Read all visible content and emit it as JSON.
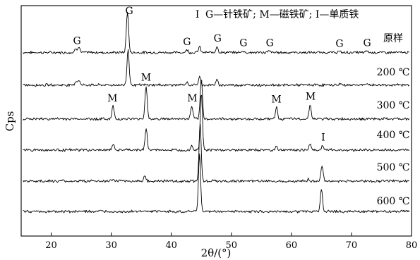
{
  "chart_data": {
    "type": "line",
    "title": "",
    "xlabel": "2θ/(°)",
    "ylabel": "Cps",
    "xlim": [
      15,
      80
    ],
    "xticks": [
      20,
      30,
      40,
      50,
      60,
      70,
      80
    ],
    "grid": false,
    "legend_text": "G—针铁矿; M—磁铁矿; I—单质铁",
    "series": [
      {
        "name": "原样",
        "baseline": 0.12,
        "peaks": [
          {
            "x": 24.1,
            "h": 0.07
          },
          {
            "x": 24.6,
            "h": 0.1
          },
          {
            "x": 32.7,
            "h": 0.72
          },
          {
            "x": 42.6,
            "h": 0.05
          },
          {
            "x": 44.7,
            "h": 0.1
          },
          {
            "x": 47.6,
            "h": 0.11
          },
          {
            "x": 51.9,
            "h": 0.03
          },
          {
            "x": 56.3,
            "h": 0.03
          },
          {
            "x": 67.9,
            "h": 0.02
          },
          {
            "x": 72.6,
            "h": 0.03
          }
        ],
        "peak_labels": [
          {
            "x": 24.3,
            "text": "G"
          },
          {
            "x": 33.0,
            "text": "G"
          },
          {
            "x": 42.6,
            "text": "G"
          },
          {
            "x": 47.7,
            "text": "G"
          },
          {
            "x": 52.0,
            "text": "G"
          },
          {
            "x": 56.4,
            "text": "G"
          },
          {
            "x": 68.0,
            "text": "G"
          },
          {
            "x": 72.6,
            "text": "G"
          }
        ]
      },
      {
        "name": "200 ℃",
        "baseline": 0.11,
        "peaks": [
          {
            "x": 24.1,
            "h": 0.06
          },
          {
            "x": 24.6,
            "h": 0.09
          },
          {
            "x": 32.8,
            "h": 0.62
          },
          {
            "x": 42.6,
            "h": 0.04
          },
          {
            "x": 44.7,
            "h": 0.14
          },
          {
            "x": 47.6,
            "h": 0.08
          },
          {
            "x": 68.1,
            "h": 0.02
          },
          {
            "x": 72.6,
            "h": 0.02
          }
        ],
        "peak_labels": []
      },
      {
        "name": "300 ℃",
        "baseline": 0.1,
        "peaks": [
          {
            "x": 30.3,
            "h": 0.22
          },
          {
            "x": 35.8,
            "h": 0.58
          },
          {
            "x": 43.4,
            "h": 0.22
          },
          {
            "x": 45.0,
            "h": 0.7
          },
          {
            "x": 57.5,
            "h": 0.2
          },
          {
            "x": 63.1,
            "h": 0.25
          }
        ],
        "peak_labels": [
          {
            "x": 30.2,
            "text": "M"
          },
          {
            "x": 35.8,
            "text": "M"
          },
          {
            "x": 43.5,
            "text": "M"
          },
          {
            "x": 57.5,
            "text": "M"
          },
          {
            "x": 63.2,
            "text": "M"
          }
        ]
      },
      {
        "name": "400 ℃",
        "baseline": 0.09,
        "peaks": [
          {
            "x": 30.3,
            "h": 0.1
          },
          {
            "x": 35.8,
            "h": 0.38
          },
          {
            "x": 43.4,
            "h": 0.08
          },
          {
            "x": 45.0,
            "h": 1.0
          },
          {
            "x": 57.5,
            "h": 0.07
          },
          {
            "x": 63.1,
            "h": 0.11
          },
          {
            "x": 65.2,
            "h": 0.08
          }
        ],
        "peak_labels": [
          {
            "x": 65.3,
            "text": "I"
          }
        ]
      },
      {
        "name": "500 ℃",
        "baseline": 0.08,
        "peaks": [
          {
            "x": 30.3,
            "h": 0.03
          },
          {
            "x": 35.6,
            "h": 0.1
          },
          {
            "x": 44.8,
            "h": 1.0
          },
          {
            "x": 62.9,
            "h": 0.03
          },
          {
            "x": 65.1,
            "h": 0.26
          }
        ],
        "peak_labels": []
      },
      {
        "name": "600 ℃",
        "baseline": 0.07,
        "peaks": [
          {
            "x": 44.7,
            "h": 1.0
          },
          {
            "x": 65.0,
            "h": 0.4
          }
        ],
        "peak_labels": []
      }
    ],
    "top_marker": {
      "x": 44.7,
      "text": "I"
    }
  }
}
